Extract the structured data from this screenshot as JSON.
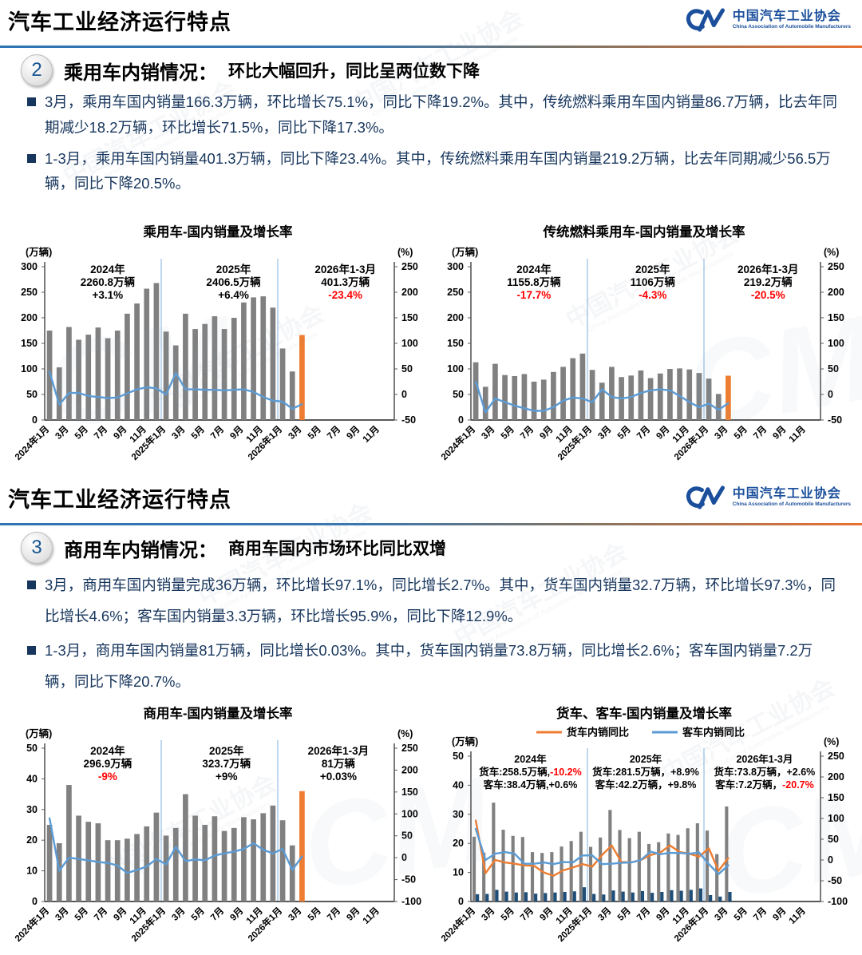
{
  "watermark": {
    "cn": "中国汽车工业协会",
    "en": "China Association of Automobile Manufacturers",
    "mark": "CM"
  },
  "colors": {
    "bar_gray": "#808080",
    "bar_orange": "#ED7D31",
    "bar_navy": "#1F4E79",
    "line_blue": "#5B9BD5",
    "line_orange": "#ED7D31",
    "red": "#FF0000",
    "divider_blue": "#2E74B5",
    "divider_orange": "#E97132",
    "text_navy": "#17365D",
    "logo_blue": "#1B4F9C"
  },
  "slides": [
    {
      "header": {
        "title": "汽车工业经济运行特点",
        "logo_cn": "中国汽车工业协会",
        "logo_en": "China Association of Automobile Manufacturers"
      },
      "section": {
        "number": "2",
        "title": "乘用车内销情况：",
        "subtitle": "环比大幅回升，同比呈两位数下降"
      },
      "bullets": [
        "3月，乘用车国内销量166.3万辆，环比增长75.1%，同比下降19.2%。其中，传统燃料乘用车国内销量86.7万辆，比去年同期减少18.2万辆，环比增长71.5%，同比下降17.3%。",
        "1-3月，乘用车国内销量401.3万辆，同比下降23.4%。其中，传统燃料乘用车国内销量219.2万辆，比去年同期减少56.5万辆，同比下降20.5%。"
      ]
    },
    {
      "header": {
        "title": "汽车工业经济运行特点",
        "logo_cn": "中国汽车工业协会",
        "logo_en": "China Association of Automobile Manufacturers"
      },
      "section": {
        "number": "3",
        "title": "商用车内销情况：",
        "subtitle": "商用车国内市场环比同比双增"
      },
      "bullets": [
        "3月，商用车国内销量完成36万辆，环比增长97.1%，同比增长2.7%。其中，货车国内销量32.7万辆，环比增长97.3%，同比增长4.6%；客车国内销量3.3万辆，环比增长95.9%，同比下降12.9%。",
        "1-3月，商用车国内销量81万辆，同比增长0.03%。其中，货车国内销量73.8万辆，同比增长2.6%；客车国内销量7.2万辆，同比下降20.7%。"
      ]
    }
  ],
  "chart_data": [
    {
      "type": "bar",
      "title": "乘用车-国内销量及增长率",
      "left_axis_label": "(万辆)",
      "right_axis_label": "(%)",
      "left_ticks": [
        0,
        50,
        100,
        150,
        200,
        250,
        300
      ],
      "right_ticks": [
        -50,
        0,
        50,
        100,
        150,
        200,
        250
      ],
      "n_slots": 36,
      "x_tick_every": 2,
      "x_tick_labels": [
        "2024年1月",
        "3月",
        "5月",
        "7月",
        "9月",
        "11月",
        "2025年1月",
        "3月",
        "5月",
        "7月",
        "9月",
        "11月",
        "2026年1月",
        "3月",
        "5月",
        "7月",
        "9月",
        "11月"
      ],
      "separators": [
        12,
        24
      ],
      "bar_series": [
        {
          "name": "国内销量(万辆)",
          "color": "#808080",
          "last_color": "#ED7D31",
          "values": [
            175,
            103,
            182,
            157,
            167,
            181,
            160,
            175,
            208,
            228,
            257,
            268,
            173,
            146,
            208,
            178,
            188,
            203,
            178,
            200,
            230,
            240,
            242,
            220,
            140,
            95,
            166.3
          ]
        }
      ],
      "line_series": [
        {
          "name": "同比增长率(%)",
          "color": "#5B9BD5",
          "values": [
            44,
            -20,
            3,
            3,
            -3,
            -5,
            -7,
            -6,
            2,
            10,
            14,
            12,
            0,
            42,
            10,
            10,
            9,
            9,
            8,
            9,
            10,
            5,
            -5,
            -12,
            -14,
            -28,
            -19.2
          ]
        }
      ],
      "legend": [],
      "annotation_size": 13.5,
      "annotations": [
        {
          "cx": 0.18,
          "lines": [
            [
              {
                "t": "2024年",
                "c": "#000000"
              }
            ],
            [
              {
                "t": "2260.8万辆",
                "c": "#000000"
              }
            ],
            [
              {
                "t": "+3.1%",
                "c": "#000000"
              }
            ]
          ]
        },
        {
          "cx": 0.54,
          "lines": [
            [
              {
                "t": "2025年",
                "c": "#000000"
              }
            ],
            [
              {
                "t": "2406.5万辆",
                "c": "#000000"
              }
            ],
            [
              {
                "t": "+6.4%",
                "c": "#000000"
              }
            ]
          ]
        },
        {
          "cx": 0.86,
          "lines": [
            [
              {
                "t": "2026年1-3月",
                "c": "#000000"
              }
            ],
            [
              {
                "t": "401.3万辆",
                "c": "#000000"
              }
            ],
            [
              {
                "t": "-23.4%",
                "c": "#FF0000"
              }
            ]
          ]
        }
      ]
    },
    {
      "type": "bar",
      "title": "传统燃料乘用车-国内销量及增长率",
      "left_axis_label": "(万辆)",
      "right_axis_label": "(%)",
      "left_ticks": [
        0,
        50,
        100,
        150,
        200,
        250,
        300
      ],
      "right_ticks": [
        -50,
        0,
        50,
        100,
        150,
        200,
        250
      ],
      "n_slots": 36,
      "x_tick_every": 2,
      "x_tick_labels": [
        "2024年1月",
        "3月",
        "5月",
        "7月",
        "9月",
        "11月",
        "2025年1月",
        "3月",
        "5月",
        "7月",
        "9月",
        "11月",
        "2026年1月",
        "3月",
        "5月",
        "7月",
        "9月",
        "11月"
      ],
      "separators": [
        12,
        24
      ],
      "bar_series": [
        {
          "name": "国内销量(万辆)",
          "color": "#808080",
          "last_color": "#ED7D31",
          "values": [
            113,
            65,
            110,
            88,
            86,
            90,
            75,
            79,
            94,
            104,
            121,
            130,
            98,
            73,
            104,
            84,
            87,
            97,
            82,
            91,
            100,
            101,
            99,
            92,
            81,
            51,
            86.7
          ]
        }
      ],
      "line_series": [
        {
          "name": "同比增长率(%)",
          "color": "#5B9BD5",
          "values": [
            25,
            -35,
            -8,
            -15,
            -22,
            -27,
            -32,
            -32,
            -25,
            -12,
            -6,
            -8,
            -15,
            10,
            -5,
            -8,
            -5,
            3,
            8,
            10,
            8,
            -3,
            -15,
            -25,
            -18,
            -30,
            -17.3
          ]
        }
      ],
      "legend": [],
      "annotation_size": 13.5,
      "annotations": [
        {
          "cx": 0.18,
          "lines": [
            [
              {
                "t": "2024年",
                "c": "#000000"
              }
            ],
            [
              {
                "t": "1155.8万辆",
                "c": "#000000"
              }
            ],
            [
              {
                "t": "-17.7%",
                "c": "#FF0000"
              }
            ]
          ]
        },
        {
          "cx": 0.52,
          "lines": [
            [
              {
                "t": "2025年",
                "c": "#000000"
              }
            ],
            [
              {
                "t": "1106万辆",
                "c": "#000000"
              }
            ],
            [
              {
                "t": "-4.3%",
                "c": "#FF0000"
              }
            ]
          ]
        },
        {
          "cx": 0.85,
          "lines": [
            [
              {
                "t": "2026年1-3月",
                "c": "#000000"
              }
            ],
            [
              {
                "t": "219.2万辆",
                "c": "#000000"
              }
            ],
            [
              {
                "t": "-20.5%",
                "c": "#FF0000"
              }
            ]
          ]
        }
      ]
    },
    {
      "type": "bar",
      "title": "商用车-国内销量及增长率",
      "left_axis_label": "(万辆)",
      "right_axis_label": "(%)",
      "left_ticks": [
        0,
        10,
        20,
        30,
        40,
        50
      ],
      "right_ticks": [
        -100,
        -50,
        0,
        50,
        100,
        150,
        200,
        250
      ],
      "n_slots": 36,
      "x_tick_every": 2,
      "x_tick_labels": [
        "2024年1月",
        "3月",
        "5月",
        "7月",
        "9月",
        "11月",
        "2025年1月",
        "3月",
        "5月",
        "7月",
        "9月",
        "11月",
        "2026年1月",
        "3月",
        "5月",
        "7月",
        "9月",
        "11月"
      ],
      "separators": [
        12,
        24
      ],
      "bar_series": [
        {
          "name": "国内销量(万辆)",
          "color": "#808080",
          "last_color": "#ED7D31",
          "values": [
            25,
            19,
            38,
            28,
            26,
            25.5,
            20,
            20,
            20.5,
            22,
            24.5,
            29,
            21.5,
            24,
            35,
            28,
            25,
            27.8,
            23,
            24,
            27.5,
            26.8,
            28.8,
            31.3,
            26.5,
            18.3,
            36
          ]
        }
      ],
      "line_series": [
        {
          "name": "同比增长率(%)",
          "color": "#5B9BD5",
          "values": [
            90,
            -30,
            0,
            -3,
            -6,
            -10,
            -12,
            -18,
            -35,
            -28,
            -20,
            -3,
            -15,
            25,
            -8,
            -4,
            -6,
            5,
            10,
            14,
            20,
            33,
            18,
            10,
            20,
            -28,
            2.7
          ]
        }
      ],
      "legend": [],
      "annotation_size": 13.5,
      "annotations": [
        {
          "cx": 0.18,
          "lines": [
            [
              {
                "t": "2024年",
                "c": "#000000"
              }
            ],
            [
              {
                "t": "296.9万辆",
                "c": "#000000"
              }
            ],
            [
              {
                "t": "-9%",
                "c": "#FF0000"
              }
            ]
          ]
        },
        {
          "cx": 0.52,
          "lines": [
            [
              {
                "t": "2025年",
                "c": "#000000"
              }
            ],
            [
              {
                "t": "323.7万辆",
                "c": "#000000"
              }
            ],
            [
              {
                "t": "+9%",
                "c": "#000000"
              }
            ]
          ]
        },
        {
          "cx": 0.84,
          "lines": [
            [
              {
                "t": "2026年1-3月",
                "c": "#000000"
              }
            ],
            [
              {
                "t": "81万辆",
                "c": "#000000"
              }
            ],
            [
              {
                "t": "+0.03%",
                "c": "#000000"
              }
            ]
          ]
        }
      ]
    },
    {
      "type": "bar",
      "title": "货车、客车-国内销量及增长率",
      "left_axis_label": "(万辆)",
      "right_axis_label": "(%)",
      "left_ticks": [
        0,
        10,
        20,
        30,
        40,
        50
      ],
      "right_ticks": [
        -100,
        -50,
        0,
        50,
        100,
        150,
        200,
        250
      ],
      "n_slots": 36,
      "x_tick_every": 2,
      "x_tick_labels": [
        "2024年1月",
        "3月",
        "5月",
        "7月",
        "9月",
        "11月",
        "2025年1月",
        "3月",
        "5月",
        "7月",
        "9月",
        "11月",
        "2026年1月",
        "3月",
        "5月",
        "7月",
        "9月",
        "11月"
      ],
      "separators": [
        12,
        24
      ],
      "bar_series": [
        {
          "name": "货车国内销量(万辆)",
          "color": "#808080",
          "values": [
            22.3,
            16.8,
            34,
            24.7,
            22.6,
            22.2,
            17,
            16.7,
            17,
            18.9,
            20.8,
            24,
            18.8,
            22,
            31.5,
            24.6,
            21.8,
            24,
            19.8,
            20.4,
            23.4,
            22.9,
            25.2,
            26.9,
            24.4,
            16.3,
            32.7
          ]
        },
        {
          "name": "客车国内销量(万辆)",
          "color": "#1F4E79",
          "values": [
            2.5,
            2.6,
            4,
            3.4,
            3.1,
            3.2,
            2.7,
            2.9,
            3.1,
            3.3,
            3.5,
            4.9,
            2.6,
            2.4,
            3.8,
            3.4,
            3.1,
            3.6,
            3,
            3.3,
            3.9,
            3.7,
            4,
            4.5,
            2.2,
            1.7,
            3.3
          ]
        }
      ],
      "line_series": [
        {
          "name": "货车内销同比",
          "color": "#ED7D31",
          "values": [
            95,
            -32,
            0,
            -6,
            -9,
            -13,
            -14,
            -30,
            -38,
            -25,
            -18,
            -10,
            -16,
            12,
            35,
            -5,
            -6,
            0,
            12,
            18,
            35,
            19,
            15,
            8,
            28,
            -26,
            4.6
          ]
        },
        {
          "name": "客车内销同比",
          "color": "#5B9BD5",
          "values": [
            75,
            0,
            15,
            19,
            15,
            -9,
            -9,
            -6,
            -10,
            -5,
            -6,
            11,
            11,
            -10,
            -9,
            -7,
            -6,
            0,
            20,
            14,
            17,
            17,
            15,
            18,
            -10,
            -34,
            -12.9
          ]
        }
      ],
      "legend": [
        {
          "label": "货车内销同比",
          "color": "#ED7D31"
        },
        {
          "label": "客车内销同比",
          "color": "#5B9BD5"
        }
      ],
      "annotation_size": 12.5,
      "annotations": [
        {
          "cx": 0.17,
          "lines": [
            [
              {
                "t": "2024年",
                "c": "#000000"
              }
            ],
            [
              {
                "t": "货车:258.5万辆,",
                "c": "#000000"
              },
              {
                "t": "-10.2%",
                "c": "#FF0000"
              }
            ],
            [
              {
                "t": "客车:38.4万辆,+0.6%",
                "c": "#000000"
              }
            ]
          ]
        },
        {
          "cx": 0.5,
          "lines": [
            [
              {
                "t": "2025年",
                "c": "#000000"
              }
            ],
            [
              {
                "t": "货车:281.5万辆，+8.9%",
                "c": "#000000"
              }
            ],
            [
              {
                "t": "客车:42.2万辆，+9.8%",
                "c": "#000000"
              }
            ]
          ]
        },
        {
          "cx": 0.84,
          "lines": [
            [
              {
                "t": "2026年1-3月",
                "c": "#000000"
              }
            ],
            [
              {
                "t": "货车:73.8万辆，+2.6%",
                "c": "#000000"
              }
            ],
            [
              {
                "t": "客车:7.2万辆，",
                "c": "#000000"
              },
              {
                "t": "-20.7%",
                "c": "#FF0000"
              }
            ]
          ]
        }
      ]
    }
  ]
}
